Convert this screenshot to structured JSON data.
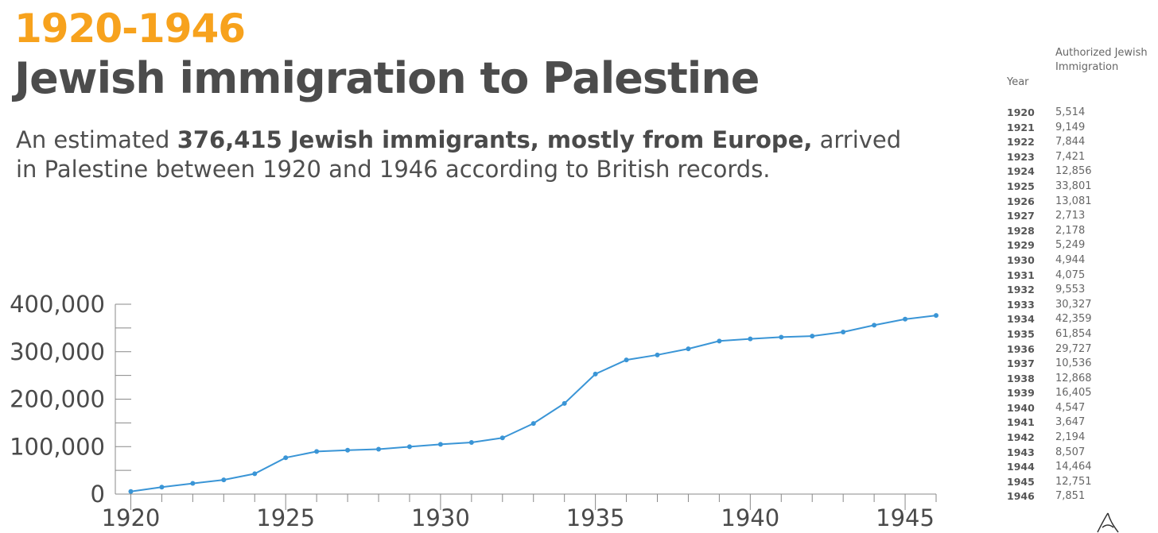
{
  "header": {
    "year_range": "1920-1946",
    "title": "Jewish immigration to Palestine",
    "subtitle_prefix": "An estimated ",
    "subtitle_bold": "376,415 Jewish immigrants, mostly from Europe,",
    "subtitle_suffix": " arrived in Palestine between 1920 and 1946 according to British records."
  },
  "table": {
    "col_year": "Year",
    "col_value": "Authorized Jewish Immigration",
    "rows": [
      {
        "year": "1920",
        "value": "5,514"
      },
      {
        "year": "1921",
        "value": "9,149"
      },
      {
        "year": "1922",
        "value": "7,844"
      },
      {
        "year": "1923",
        "value": "7,421"
      },
      {
        "year": "1924",
        "value": "12,856"
      },
      {
        "year": "1925",
        "value": "33,801"
      },
      {
        "year": "1926",
        "value": "13,081"
      },
      {
        "year": "1927",
        "value": "2,713"
      },
      {
        "year": "1928",
        "value": "2,178"
      },
      {
        "year": "1929",
        "value": "5,249"
      },
      {
        "year": "1930",
        "value": "4,944"
      },
      {
        "year": "1931",
        "value": "4,075"
      },
      {
        "year": "1932",
        "value": "9,553"
      },
      {
        "year": "1933",
        "value": "30,327"
      },
      {
        "year": "1934",
        "value": "42,359"
      },
      {
        "year": "1935",
        "value": "61,854"
      },
      {
        "year": "1936",
        "value": "29,727"
      },
      {
        "year": "1937",
        "value": "10,536"
      },
      {
        "year": "1938",
        "value": "12,868"
      },
      {
        "year": "1939",
        "value": "16,405"
      },
      {
        "year": "1940",
        "value": "4,547"
      },
      {
        "year": "1941",
        "value": "3,647"
      },
      {
        "year": "1942",
        "value": "2,194"
      },
      {
        "year": "1943",
        "value": "8,507"
      },
      {
        "year": "1944",
        "value": "14,464"
      },
      {
        "year": "1945",
        "value": "12,751"
      },
      {
        "year": "1946",
        "value": "7,851"
      }
    ]
  },
  "chart_data": {
    "type": "line",
    "x": [
      1920,
      1921,
      1922,
      1923,
      1924,
      1925,
      1926,
      1927,
      1928,
      1929,
      1930,
      1931,
      1932,
      1933,
      1934,
      1935,
      1936,
      1937,
      1938,
      1939,
      1940,
      1941,
      1942,
      1943,
      1944,
      1945,
      1946
    ],
    "y": [
      5514,
      14663,
      22507,
      29928,
      42784,
      76585,
      89666,
      92379,
      94557,
      99806,
      104750,
      108825,
      118378,
      148705,
      191064,
      252918,
      282645,
      293181,
      306049,
      322454,
      327001,
      330648,
      332842,
      341349,
      355813,
      368564,
      376415
    ],
    "xlim": [
      1919.5,
      1946
    ],
    "ylim": [
      0,
      400000
    ],
    "xticks": [
      "1920",
      "1925",
      "1930",
      "1935",
      "1940",
      "1945"
    ],
    "yticks": [
      "0",
      "100,000",
      "200,000",
      "300,000",
      "400,000"
    ],
    "grid": false,
    "colors": {
      "line": "#3a95d6",
      "axis": "#888888"
    }
  }
}
